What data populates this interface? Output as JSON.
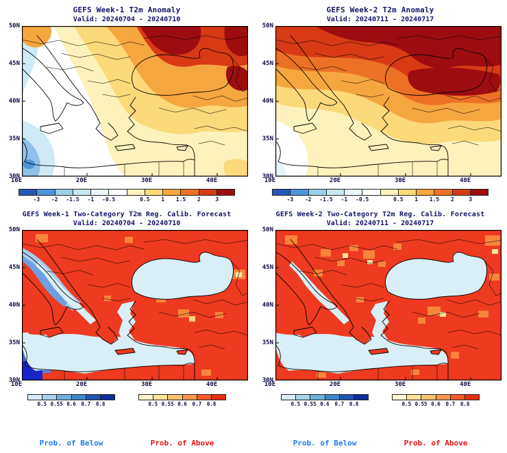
{
  "figure": {
    "background": "#ffffff"
  },
  "colors": {
    "title_text": "#14146a",
    "axis_text": "#0e0e46",
    "below_label": "#1b7af0",
    "above_label": "#e81212"
  },
  "axes": {
    "lat_ticks": [
      "50N",
      "45N",
      "40N",
      "35N",
      "30N"
    ],
    "lon_ticks": [
      "10E",
      "20E",
      "30E",
      "40E"
    ]
  },
  "anomaly_colorbar": {
    "colors": [
      "#2855b8",
      "#4f94d9",
      "#9dcfe8",
      "#c9e8f2",
      "#e9f7fb",
      "#ffffff",
      "#fdf2bb",
      "#fcd979",
      "#f5a73f",
      "#ed7124",
      "#d83a16",
      "#9d0d10"
    ],
    "ticks": [
      {
        "label": "-3",
        "b": 1
      },
      {
        "label": "-2",
        "b": 2
      },
      {
        "label": "-1.5",
        "b": 3
      },
      {
        "label": "-1",
        "b": 4
      },
      {
        "label": "-0.5",
        "b": 5
      },
      {
        "label": "0.5",
        "b": 7
      },
      {
        "label": "1",
        "b": 8
      },
      {
        "label": "1.5",
        "b": 9
      },
      {
        "label": "2",
        "b": 10
      },
      {
        "label": "3",
        "b": 11
      }
    ]
  },
  "prob_below_colorbar": {
    "colors": [
      "#d8ecf7",
      "#a9d2ec",
      "#6fb0dd",
      "#3f87c8",
      "#2257b0",
      "#0f2e9e"
    ],
    "ticks": [
      {
        "label": "0.5",
        "b": 1
      },
      {
        "label": "0.55",
        "b": 2
      },
      {
        "label": "0.6",
        "b": 3
      },
      {
        "label": "0.7",
        "b": 4
      },
      {
        "label": "0.8",
        "b": 5
      }
    ]
  },
  "prob_above_colorbar": {
    "colors": [
      "#fdf5cd",
      "#fde29b",
      "#fcc172",
      "#f9964d",
      "#f25b2c",
      "#e92f14"
    ],
    "ticks": [
      {
        "label": "0.5",
        "b": 1
      },
      {
        "label": "0.55",
        "b": 2
      },
      {
        "label": "0.6",
        "b": 3
      },
      {
        "label": "0.7",
        "b": 4
      },
      {
        "label": "0.8",
        "b": 5
      }
    ]
  },
  "legend": {
    "below": "Prob. of Below",
    "above": "Prob. of Above"
  },
  "panels": [
    {
      "title": "GEFS Week-1 T2m Anomaly",
      "valid": "Valid: 20240704 - 20240710"
    },
    {
      "title": "GEFS Week-2 T2m Anomaly",
      "valid": "Valid: 20240711 - 20240717"
    },
    {
      "title": "GEFS Week-1 Two-Category T2m Reg. Calib. Forecast",
      "valid": "Valid: 20240704 - 20240710"
    },
    {
      "title": "GEFS Week-2 Two-Category T2m Reg. Calib. Forecast",
      "valid": "Valid: 20240711 - 20240717"
    }
  ]
}
